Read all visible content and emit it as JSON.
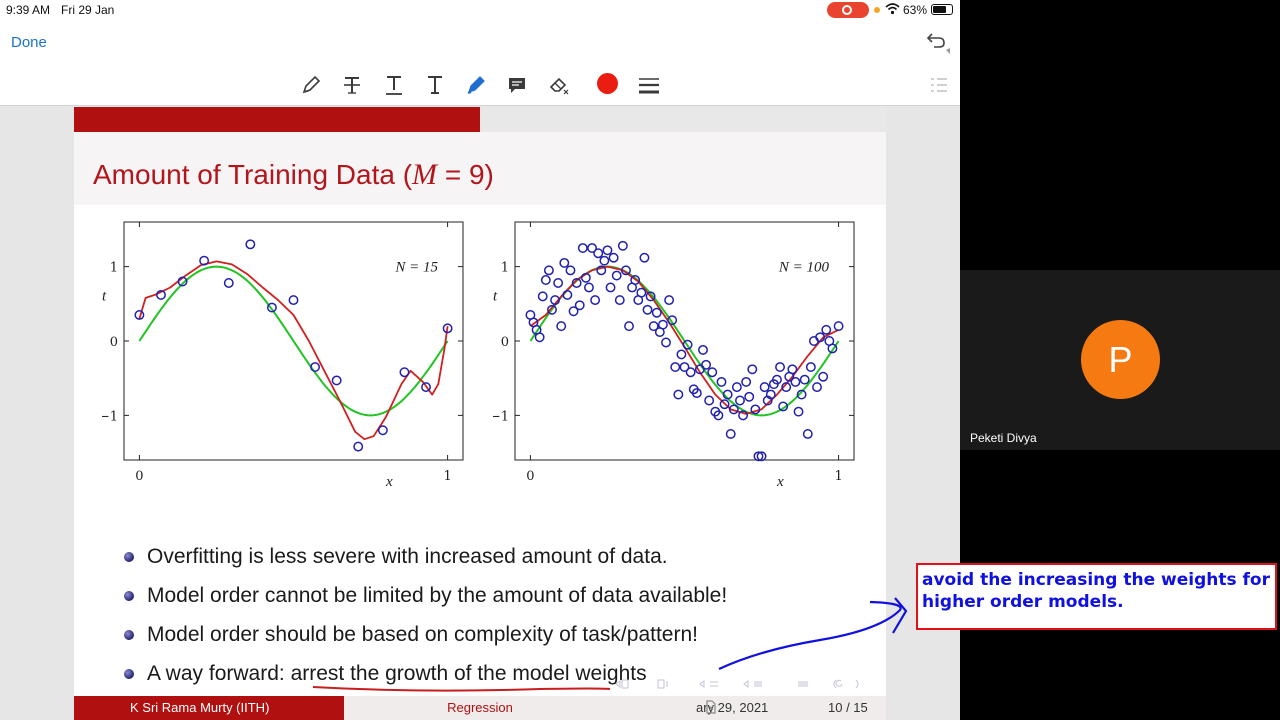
{
  "status_bar": {
    "time": "9:39 AM",
    "date": "Fri 29 Jan",
    "battery": "63%"
  },
  "nav": {
    "done_label": "Done"
  },
  "toolbar": {
    "icons": [
      "pen-icon",
      "strikethrough-text-icon",
      "underline-text-icon",
      "text-icon",
      "highlighter-pen-icon",
      "comment-icon",
      "eraser-icon",
      "color-swatch",
      "line-weight-icon",
      "thumbnails-icon"
    ],
    "active_color": "#ea1d10"
  },
  "slide": {
    "progress": 0.5,
    "title_prefix": "Amount of Training Data (",
    "title_var": "M",
    "title_suffix": " = 9)",
    "bullets": [
      "Overfitting is less severe with increased amount of data.",
      "Model order cannot be limited by the amount of data available!",
      "Model order should be based on complexity of task/pattern!"
    ],
    "bullet4_prefix": "A way forward: ",
    "bullet4_highlight": "arrest the growth of the model weights",
    "footer_author": "K Sri Rama Murty  (IITH)",
    "footer_topic": "Regression",
    "footer_date": "ary 29, 2021",
    "footer_page": "10 / 15"
  },
  "annotation": {
    "note": "avoid the increasing the weights for higher order models.",
    "ink_color": "#1010e0",
    "box_color": "#e0101a",
    "underline_color": "#c81e1e"
  },
  "participant": {
    "initial": "P",
    "name": "Peketi Divya"
  },
  "chart_data": [
    {
      "type": "scatter",
      "annotation": "N = 15",
      "xlabel": "x",
      "ylabel": "t",
      "xlim": [
        -0.05,
        1.05
      ],
      "ylim": [
        -1.6,
        1.6
      ],
      "xticks": [
        "0",
        "1"
      ],
      "yticks": [
        "−1",
        "0",
        "1"
      ],
      "points": [
        [
          0.0,
          0.35
        ],
        [
          0.07,
          0.62
        ],
        [
          0.14,
          0.8
        ],
        [
          0.21,
          1.08
        ],
        [
          0.29,
          0.78
        ],
        [
          0.36,
          1.3
        ],
        [
          0.43,
          0.45
        ],
        [
          0.5,
          0.55
        ],
        [
          0.57,
          -0.35
        ],
        [
          0.64,
          -0.53
        ],
        [
          0.71,
          -1.42
        ],
        [
          0.79,
          -1.2
        ],
        [
          0.86,
          -0.42
        ],
        [
          0.93,
          -0.62
        ],
        [
          1.0,
          0.17
        ]
      ],
      "series": [
        {
          "name": "",
          "color": "#22c322",
          "kind": "sin"
        },
        {
          "name": "",
          "color": "#d02020",
          "kind": "fit"
        }
      ],
      "fit_curve": [
        [
          0.0,
          0.3
        ],
        [
          0.02,
          0.58
        ],
        [
          0.05,
          0.62
        ],
        [
          0.1,
          0.72
        ],
        [
          0.15,
          0.88
        ],
        [
          0.2,
          1.02
        ],
        [
          0.25,
          1.07
        ],
        [
          0.3,
          1.03
        ],
        [
          0.35,
          0.9
        ],
        [
          0.4,
          0.72
        ],
        [
          0.45,
          0.55
        ],
        [
          0.5,
          0.35
        ],
        [
          0.55,
          0.0
        ],
        [
          0.6,
          -0.4
        ],
        [
          0.65,
          -0.8
        ],
        [
          0.7,
          -1.22
        ],
        [
          0.73,
          -1.32
        ],
        [
          0.76,
          -1.28
        ],
        [
          0.8,
          -1.02
        ],
        [
          0.85,
          -0.58
        ],
        [
          0.88,
          -0.4
        ],
        [
          0.92,
          -0.55
        ],
        [
          0.95,
          -0.72
        ],
        [
          0.97,
          -0.58
        ],
        [
          0.99,
          -0.1
        ],
        [
          1.0,
          0.2
        ]
      ]
    },
    {
      "type": "scatter",
      "annotation": "N = 100",
      "xlabel": "x",
      "ylabel": "t",
      "xlim": [
        -0.05,
        1.05
      ],
      "ylim": [
        -1.6,
        1.6
      ],
      "xticks": [
        "0",
        "1"
      ],
      "yticks": [
        "−1",
        "0",
        "1"
      ],
      "points": [
        [
          0.0,
          0.35
        ],
        [
          0.01,
          0.25
        ],
        [
          0.02,
          0.15
        ],
        [
          0.03,
          0.05
        ],
        [
          0.04,
          0.6
        ],
        [
          0.05,
          0.82
        ],
        [
          0.06,
          0.95
        ],
        [
          0.07,
          0.42
        ],
        [
          0.08,
          0.55
        ],
        [
          0.09,
          0.78
        ],
        [
          0.1,
          0.2
        ],
        [
          0.11,
          1.05
        ],
        [
          0.12,
          0.62
        ],
        [
          0.13,
          0.95
        ],
        [
          0.14,
          0.4
        ],
        [
          0.15,
          0.78
        ],
        [
          0.16,
          0.48
        ],
        [
          0.17,
          1.25
        ],
        [
          0.18,
          0.85
        ],
        [
          0.19,
          0.72
        ],
        [
          0.2,
          1.25
        ],
        [
          0.21,
          0.55
        ],
        [
          0.22,
          1.18
        ],
        [
          0.23,
          0.95
        ],
        [
          0.24,
          1.08
        ],
        [
          0.25,
          1.22
        ],
        [
          0.26,
          0.72
        ],
        [
          0.27,
          1.12
        ],
        [
          0.28,
          0.88
        ],
        [
          0.29,
          0.55
        ],
        [
          0.3,
          1.28
        ],
        [
          0.31,
          0.95
        ],
        [
          0.32,
          0.2
        ],
        [
          0.33,
          0.72
        ],
        [
          0.34,
          0.82
        ],
        [
          0.35,
          0.55
        ],
        [
          0.36,
          0.65
        ],
        [
          0.37,
          1.12
        ],
        [
          0.38,
          0.42
        ],
        [
          0.39,
          0.6
        ],
        [
          0.4,
          0.2
        ],
        [
          0.41,
          0.38
        ],
        [
          0.42,
          0.12
        ],
        [
          0.43,
          0.22
        ],
        [
          0.44,
          -0.02
        ],
        [
          0.45,
          0.55
        ],
        [
          0.46,
          0.28
        ],
        [
          0.47,
          -0.35
        ],
        [
          0.48,
          -0.72
        ],
        [
          0.49,
          -0.18
        ],
        [
          0.5,
          -0.35
        ],
        [
          0.51,
          -0.05
        ],
        [
          0.52,
          -0.42
        ],
        [
          0.53,
          -0.65
        ],
        [
          0.54,
          -0.7
        ],
        [
          0.55,
          -0.38
        ],
        [
          0.56,
          -0.12
        ],
        [
          0.57,
          -0.32
        ],
        [
          0.58,
          -0.8
        ],
        [
          0.59,
          -0.42
        ],
        [
          0.6,
          -0.95
        ],
        [
          0.61,
          -1.0
        ],
        [
          0.62,
          -0.55
        ],
        [
          0.63,
          -0.85
        ],
        [
          0.64,
          -0.72
        ],
        [
          0.65,
          -1.25
        ],
        [
          0.66,
          -0.92
        ],
        [
          0.67,
          -0.62
        ],
        [
          0.68,
          -0.8
        ],
        [
          0.69,
          -1.0
        ],
        [
          0.7,
          -0.55
        ],
        [
          0.71,
          -0.75
        ],
        [
          0.72,
          -0.38
        ],
        [
          0.73,
          -0.92
        ],
        [
          0.74,
          -1.55
        ],
        [
          0.75,
          -1.55
        ],
        [
          0.76,
          -0.62
        ],
        [
          0.77,
          -0.8
        ],
        [
          0.78,
          -0.72
        ],
        [
          0.79,
          -0.58
        ],
        [
          0.8,
          -0.52
        ],
        [
          0.81,
          -0.35
        ],
        [
          0.82,
          -0.88
        ],
        [
          0.83,
          -0.62
        ],
        [
          0.84,
          -0.48
        ],
        [
          0.85,
          -0.38
        ],
        [
          0.86,
          -0.55
        ],
        [
          0.87,
          -0.95
        ],
        [
          0.88,
          -0.72
        ],
        [
          0.89,
          -0.52
        ],
        [
          0.9,
          -1.25
        ],
        [
          0.91,
          -0.35
        ],
        [
          0.92,
          0.0
        ],
        [
          0.93,
          -0.62
        ],
        [
          0.94,
          0.05
        ],
        [
          0.95,
          -0.48
        ],
        [
          0.96,
          0.15
        ],
        [
          0.97,
          0.0
        ],
        [
          0.98,
          -0.1
        ],
        [
          1.0,
          0.2
        ]
      ],
      "series": [
        {
          "name": "",
          "color": "#22c322",
          "kind": "sin"
        },
        {
          "name": "",
          "color": "#d02020",
          "kind": "fit"
        }
      ],
      "fit_curve": [
        [
          0.0,
          0.2
        ],
        [
          0.05,
          0.35
        ],
        [
          0.1,
          0.6
        ],
        [
          0.15,
          0.82
        ],
        [
          0.2,
          0.95
        ],
        [
          0.25,
          1.0
        ],
        [
          0.3,
          0.95
        ],
        [
          0.35,
          0.8
        ],
        [
          0.4,
          0.55
        ],
        [
          0.45,
          0.25
        ],
        [
          0.5,
          -0.08
        ],
        [
          0.55,
          -0.42
        ],
        [
          0.6,
          -0.72
        ],
        [
          0.65,
          -0.92
        ],
        [
          0.7,
          -0.98
        ],
        [
          0.75,
          -0.92
        ],
        [
          0.8,
          -0.72
        ],
        [
          0.85,
          -0.48
        ],
        [
          0.9,
          -0.2
        ],
        [
          0.95,
          0.05
        ],
        [
          1.0,
          0.15
        ]
      ]
    }
  ]
}
